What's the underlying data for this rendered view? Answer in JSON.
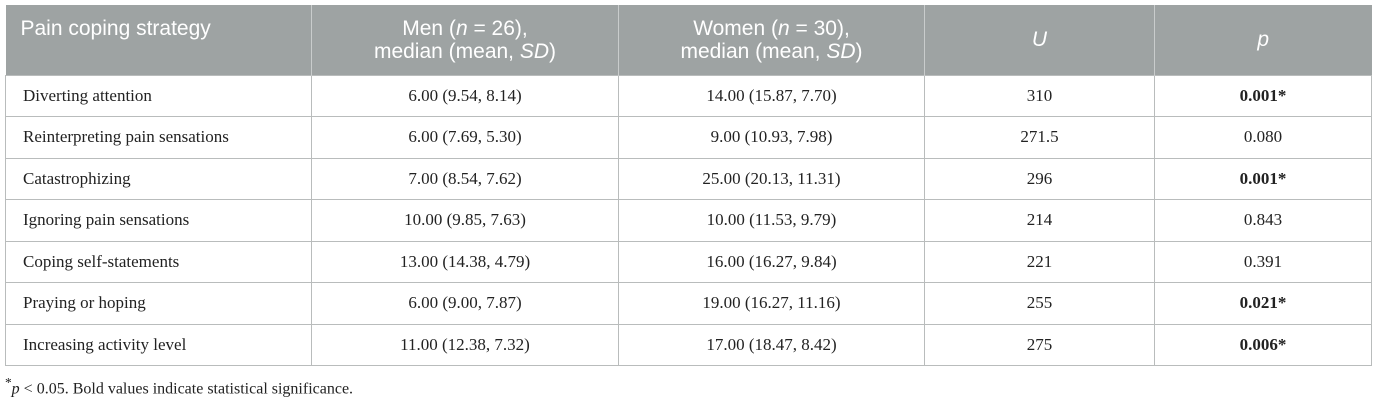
{
  "table": {
    "headers": {
      "strategy": "Pain coping strategy",
      "men_line1_pre": "Men (",
      "men_n": "n",
      "men_line1_post": " = 26),",
      "men_line2_pre": "median (mean, ",
      "men_sd": "SD",
      "men_line2_post": ")",
      "women_line1_pre": "Women (",
      "women_n": "n",
      "women_line1_post": " = 30),",
      "women_line2_pre": "median (mean, ",
      "women_sd": "SD",
      "women_line2_post": ")",
      "u": "U",
      "p": "p"
    },
    "rows": [
      {
        "strategy": "Diverting attention",
        "men": "6.00 (9.54, 8.14)",
        "women": "14.00 (15.87, 7.70)",
        "u": "310",
        "p": "0.001*",
        "significant": true
      },
      {
        "strategy": "Reinterpreting pain sensations",
        "men": "6.00 (7.69, 5.30)",
        "women": "9.00 (10.93, 7.98)",
        "u": "271.5",
        "p": "0.080",
        "significant": false
      },
      {
        "strategy": "Catastrophizing",
        "men": "7.00 (8.54, 7.62)",
        "women": "25.00 (20.13, 11.31)",
        "u": "296",
        "p": "0.001*",
        "significant": true
      },
      {
        "strategy": "Ignoring pain sensations",
        "men": "10.00 (9.85, 7.63)",
        "women": "10.00 (11.53, 9.79)",
        "u": "214",
        "p": "0.843",
        "significant": false
      },
      {
        "strategy": "Coping self-statements",
        "men": "13.00 (14.38, 4.79)",
        "women": "16.00 (16.27, 9.84)",
        "u": "221",
        "p": "0.391",
        "significant": false
      },
      {
        "strategy": "Praying or hoping",
        "men": "6.00 (9.00, 7.87)",
        "women": "19.00 (16.27, 11.16)",
        "u": "255",
        "p": "0.021*",
        "significant": true
      },
      {
        "strategy": "Increasing activity level",
        "men": "11.00 (12.38, 7.32)",
        "women": "17.00 (18.47, 8.42)",
        "u": "275",
        "p": "0.006*",
        "significant": true
      }
    ]
  },
  "footnote": {
    "star": "*",
    "p": "p",
    "rest": " < 0.05. Bold values indicate statistical significance."
  },
  "colors": {
    "header_bg": "#9ea3a3",
    "header_text": "#ffffff",
    "border": "#b9bcbc"
  }
}
